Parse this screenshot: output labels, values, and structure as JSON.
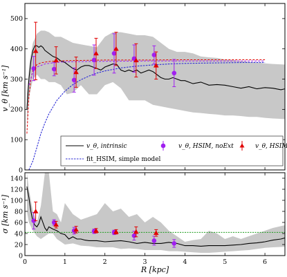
{
  "colors": {
    "band": "#c8c8c8",
    "intrinsic": "#000000",
    "noext": "#a020f0",
    "hsim": "#e00000",
    "model": "#2b2bd6",
    "sigma_ref": "#1a9b1a"
  },
  "chart_data": [
    {
      "type": "line",
      "panel": "top",
      "xlim": [
        0,
        6.5
      ],
      "ylim": [
        0,
        550
      ],
      "xticks": [
        0,
        1,
        2,
        3,
        4,
        5,
        6
      ],
      "yticks": [
        0,
        100,
        200,
        300,
        400,
        500
      ],
      "ytick_labels": [
        "0",
        "100",
        "200",
        "300",
        "400",
        "500"
      ],
      "ylabel": "v_θ [km s⁻¹]",
      "legend_placement": "bottom",
      "legend": {
        "intrinsic": "v_θ, intrinsic",
        "model": "fit_HSIM, simple model",
        "noext": "v_θ, HSIM, noExt",
        "hsim": "v_θ, HSIM"
      },
      "band": {
        "x": [
          0.05,
          0.12,
          0.2,
          0.3,
          0.4,
          0.5,
          0.6,
          0.75,
          0.9,
          1.05,
          1.2,
          1.4,
          1.6,
          1.8,
          2.0,
          2.2,
          2.4,
          2.6,
          2.8,
          3.0,
          3.2,
          3.4,
          3.6,
          3.8,
          4.0,
          4.2,
          4.4,
          4.6,
          4.8,
          5.0,
          5.2,
          5.4,
          5.6,
          5.8,
          6.0,
          6.2,
          6.5
        ],
        "upper": [
          250,
          360,
          420,
          450,
          460,
          460,
          455,
          440,
          440,
          430,
          420,
          415,
          410,
          405,
          440,
          455,
          455,
          450,
          445,
          445,
          440,
          420,
          400,
          390,
          390,
          385,
          375,
          372,
          370,
          365,
          363,
          360,
          357,
          355,
          352,
          350,
          348
        ],
        "lower": [
          150,
          250,
          300,
          315,
          300,
          300,
          290,
          290,
          280,
          250,
          255,
          280,
          250,
          250,
          280,
          290,
          270,
          230,
          230,
          230,
          215,
          210,
          205,
          200,
          195,
          190,
          188,
          185,
          183,
          180,
          180,
          178,
          175,
          175,
          172,
          170,
          168
        ]
      },
      "series": [
        {
          "key": "intrinsic",
          "x": [
            0.05,
            0.1,
            0.15,
            0.2,
            0.25,
            0.3,
            0.35,
            0.4,
            0.45,
            0.5,
            0.6,
            0.7,
            0.8,
            0.9,
            1.0,
            1.1,
            1.2,
            1.3,
            1.4,
            1.5,
            1.6,
            1.7,
            1.8,
            1.9,
            2.0,
            2.1,
            2.2,
            2.3,
            2.4,
            2.5,
            2.6,
            2.7,
            2.8,
            2.9,
            3.0,
            3.1,
            3.2,
            3.3,
            3.4,
            3.5,
            3.6,
            3.7,
            3.8,
            3.9,
            4.0,
            4.2,
            4.4,
            4.6,
            4.8,
            5.0,
            5.2,
            5.4,
            5.6,
            5.8,
            6.0,
            6.2,
            6.4,
            6.5
          ],
          "y": [
            200,
            300,
            360,
            395,
            410,
            410,
            405,
            410,
            405,
            395,
            385,
            375,
            370,
            360,
            355,
            345,
            335,
            330,
            340,
            345,
            345,
            340,
            335,
            330,
            340,
            345,
            350,
            348,
            330,
            325,
            330,
            325,
            330,
            320,
            325,
            330,
            325,
            315,
            305,
            300,
            300,
            305,
            300,
            295,
            295,
            285,
            290,
            280,
            282,
            280,
            275,
            270,
            275,
            268,
            272,
            270,
            265,
            268
          ]
        },
        {
          "key": "model",
          "x": [
            0.1,
            0.2,
            0.3,
            0.4,
            0.5,
            0.6,
            0.8,
            1.0,
            1.2,
            1.4,
            1.6,
            1.8,
            2.0,
            2.4,
            2.8,
            3.2,
            3.6,
            4.0,
            4.5,
            5.0,
            5.5,
            6.0
          ],
          "y": [
            0,
            30,
            75,
            120,
            155,
            185,
            230,
            260,
            282,
            298,
            310,
            320,
            327,
            337,
            343,
            347,
            350,
            352,
            353,
            354,
            355,
            355
          ]
        },
        {
          "key": "hsim_fit",
          "x": [
            0.05,
            0.1,
            0.15,
            0.2,
            0.3,
            0.4,
            0.6,
            0.8,
            1.0,
            1.5,
            2.0,
            3.0,
            4.0,
            5.0,
            6.0
          ],
          "y": [
            120,
            240,
            300,
            330,
            348,
            354,
            358,
            360,
            361,
            362,
            363,
            363,
            364,
            364,
            364
          ]
        },
        {
          "key": "noext_fit",
          "x": [
            0.1,
            0.2,
            0.3,
            0.5,
            0.8,
            1.0,
            1.5,
            2.0,
            3.0,
            4.0,
            5.0,
            6.0
          ],
          "y": [
            280,
            325,
            340,
            350,
            355,
            357,
            358,
            359,
            360,
            360,
            360,
            360
          ]
        }
      ],
      "points": {
        "noext": [
          {
            "x": 0.22,
            "y": 335,
            "err": 40
          },
          {
            "x": 0.73,
            "y": 333,
            "err": 22
          },
          {
            "x": 1.23,
            "y": 297,
            "err": 40
          },
          {
            "x": 1.73,
            "y": 363,
            "err": 50
          },
          {
            "x": 2.23,
            "y": 385,
            "err": 65
          },
          {
            "x": 2.73,
            "y": 368,
            "err": 45
          },
          {
            "x": 3.23,
            "y": 380,
            "err": 30
          },
          {
            "x": 3.73,
            "y": 320,
            "err": 45
          }
        ],
        "hsim": [
          {
            "x": 0.27,
            "y": 393,
            "err": 95
          },
          {
            "x": 0.78,
            "y": 362,
            "err": 45
          },
          {
            "x": 1.28,
            "y": 323,
            "err": 50
          },
          {
            "x": 1.78,
            "y": 385,
            "err": 50
          },
          {
            "x": 2.28,
            "y": 400,
            "err": 55
          },
          {
            "x": 2.78,
            "y": 362,
            "err": 55
          },
          {
            "x": 3.28,
            "y": 345,
            "err": 45
          }
        ]
      }
    },
    {
      "type": "line",
      "panel": "bottom",
      "xlim": [
        0,
        6.5
      ],
      "ylim": [
        0,
        150
      ],
      "xticks": [
        0,
        1,
        2,
        3,
        4,
        5,
        6
      ],
      "xtick_labels": [
        "0",
        "1",
        "2",
        "3",
        "4",
        "5",
        "6"
      ],
      "yticks": [
        0,
        20,
        40,
        60,
        80,
        100,
        120,
        140
      ],
      "ytick_labels": [
        "0",
        "20",
        "40",
        "60",
        "80",
        "100",
        "120",
        "140"
      ],
      "xlabel": "R [kpc]",
      "ylabel": "σ [km s⁻¹]",
      "band": {
        "x": [
          0.05,
          0.1,
          0.2,
          0.3,
          0.4,
          0.5,
          0.6,
          0.7,
          0.8,
          0.9,
          1.0,
          1.2,
          1.4,
          1.6,
          1.8,
          2.0,
          2.2,
          2.4,
          2.6,
          2.8,
          3.0,
          3.2,
          3.4,
          3.6,
          3.8,
          4.0,
          4.2,
          4.4,
          4.6,
          4.8,
          5.0,
          5.2,
          5.4,
          5.6,
          5.8,
          6.0,
          6.2,
          6.5
        ],
        "upper": [
          150,
          120,
          80,
          60,
          90,
          150,
          150,
          80,
          75,
          60,
          95,
          75,
          65,
          70,
          75,
          95,
          80,
          85,
          70,
          75,
          60,
          70,
          60,
          45,
          35,
          25,
          28,
          30,
          45,
          40,
          30,
          35,
          30,
          35,
          40,
          45,
          50,
          55
        ],
        "lower": [
          80,
          60,
          45,
          35,
          30,
          35,
          40,
          40,
          30,
          25,
          20,
          22,
          18,
          17,
          15,
          15,
          15,
          12,
          13,
          12,
          10,
          10,
          10,
          8,
          8,
          7,
          6,
          5,
          5,
          6,
          7,
          8,
          9,
          10,
          12,
          14,
          15,
          16
        ]
      },
      "series": [
        {
          "key": "intrinsic",
          "x": [
            0.05,
            0.1,
            0.15,
            0.2,
            0.25,
            0.3,
            0.35,
            0.4,
            0.45,
            0.5,
            0.55,
            0.6,
            0.7,
            0.8,
            0.9,
            1.0,
            1.1,
            1.2,
            1.3,
            1.4,
            1.5,
            1.6,
            1.8,
            2.0,
            2.2,
            2.4,
            2.6,
            2.8,
            3.0,
            3.2,
            3.4,
            3.6,
            3.8,
            4.0,
            4.2,
            4.4,
            4.6,
            4.8,
            5.0,
            5.2,
            5.4,
            5.6,
            5.8,
            6.0,
            6.2,
            6.4,
            6.5
          ],
          "y": [
            125,
            105,
            80,
            62,
            55,
            52,
            58,
            70,
            60,
            50,
            45,
            52,
            48,
            45,
            40,
            38,
            30,
            34,
            30,
            30,
            28,
            27,
            27,
            25,
            26,
            27,
            25,
            22,
            24,
            22,
            22,
            24,
            22,
            18,
            18,
            17,
            18,
            18,
            18,
            19,
            20,
            22,
            23,
            25,
            28,
            30,
            32
          ]
        },
        {
          "key": "sigma_ref",
          "x": [
            0,
            6.5
          ],
          "y": [
            42,
            42
          ]
        }
      ],
      "points": {
        "noext": [
          {
            "x": 0.22,
            "y": 63,
            "err": 15
          },
          {
            "x": 0.73,
            "y": 60,
            "err": 5
          },
          {
            "x": 1.23,
            "y": 45,
            "err": 6
          },
          {
            "x": 1.73,
            "y": 44,
            "err": 4
          },
          {
            "x": 2.23,
            "y": 42,
            "err": 4
          },
          {
            "x": 2.73,
            "y": 36,
            "err": 8
          },
          {
            "x": 3.23,
            "y": 27,
            "err": 8
          },
          {
            "x": 3.73,
            "y": 22,
            "err": 7
          }
        ],
        "hsim": [
          {
            "x": 0.27,
            "y": 80,
            "err": 17
          },
          {
            "x": 0.78,
            "y": 56,
            "err": 6
          },
          {
            "x": 1.28,
            "y": 47,
            "err": 6
          },
          {
            "x": 1.78,
            "y": 45,
            "err": 4
          },
          {
            "x": 2.28,
            "y": 43,
            "err": 4
          },
          {
            "x": 2.78,
            "y": 43,
            "err": 9
          },
          {
            "x": 3.28,
            "y": 41,
            "err": 6
          }
        ]
      }
    }
  ]
}
